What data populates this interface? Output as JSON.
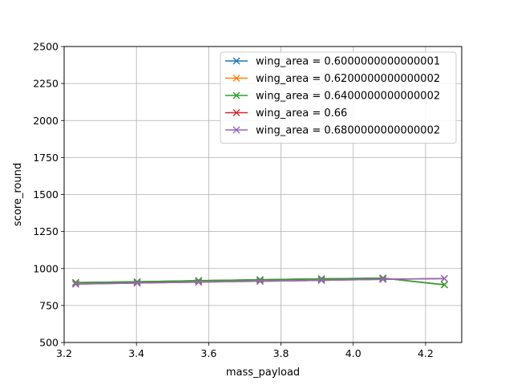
{
  "chart_data": {
    "type": "line",
    "xlabel": "mass_payload",
    "ylabel": "score_round",
    "xlim": [
      3.2,
      4.3
    ],
    "ylim": [
      500,
      2500
    ],
    "xticks": [
      3.2,
      3.4,
      3.6,
      3.8,
      4.0,
      4.2
    ],
    "xtick_labels": [
      "3.2",
      "3.4",
      "3.6",
      "3.8",
      "4.0",
      "4.2"
    ],
    "yticks": [
      500,
      750,
      1000,
      1250,
      1500,
      1750,
      2000,
      2250,
      2500
    ],
    "ytick_labels": [
      "500",
      "750",
      "1000",
      "1250",
      "1500",
      "1750",
      "2000",
      "2250",
      "2500"
    ],
    "grid": true,
    "legend_position": "top-right",
    "marker": "x",
    "x": [
      3.232,
      3.402,
      3.572,
      3.742,
      3.912,
      4.082,
      4.252
    ],
    "series": [
      {
        "name": "wing_area = 0.6000000000000001",
        "color": "#1f77b4",
        "values": [
          905,
          910,
          918,
          924,
          930,
          935,
          890
        ]
      },
      {
        "name": "wing_area = 0.6200000000000002",
        "color": "#ff7f0e",
        "values": [
          905,
          910,
          918,
          924,
          930,
          935,
          890
        ]
      },
      {
        "name": "wing_area = 0.6400000000000002",
        "color": "#2ca02c",
        "values": [
          905,
          910,
          918,
          924,
          930,
          935,
          890
        ]
      },
      {
        "name": "wing_area = 0.66",
        "color": "#d62728",
        "values": [
          895,
          902,
          908,
          914,
          920,
          927,
          932
        ]
      },
      {
        "name": "wing_area = 0.6800000000000002",
        "color": "#9467bd",
        "values": [
          895,
          902,
          908,
          914,
          920,
          927,
          932
        ]
      }
    ]
  }
}
